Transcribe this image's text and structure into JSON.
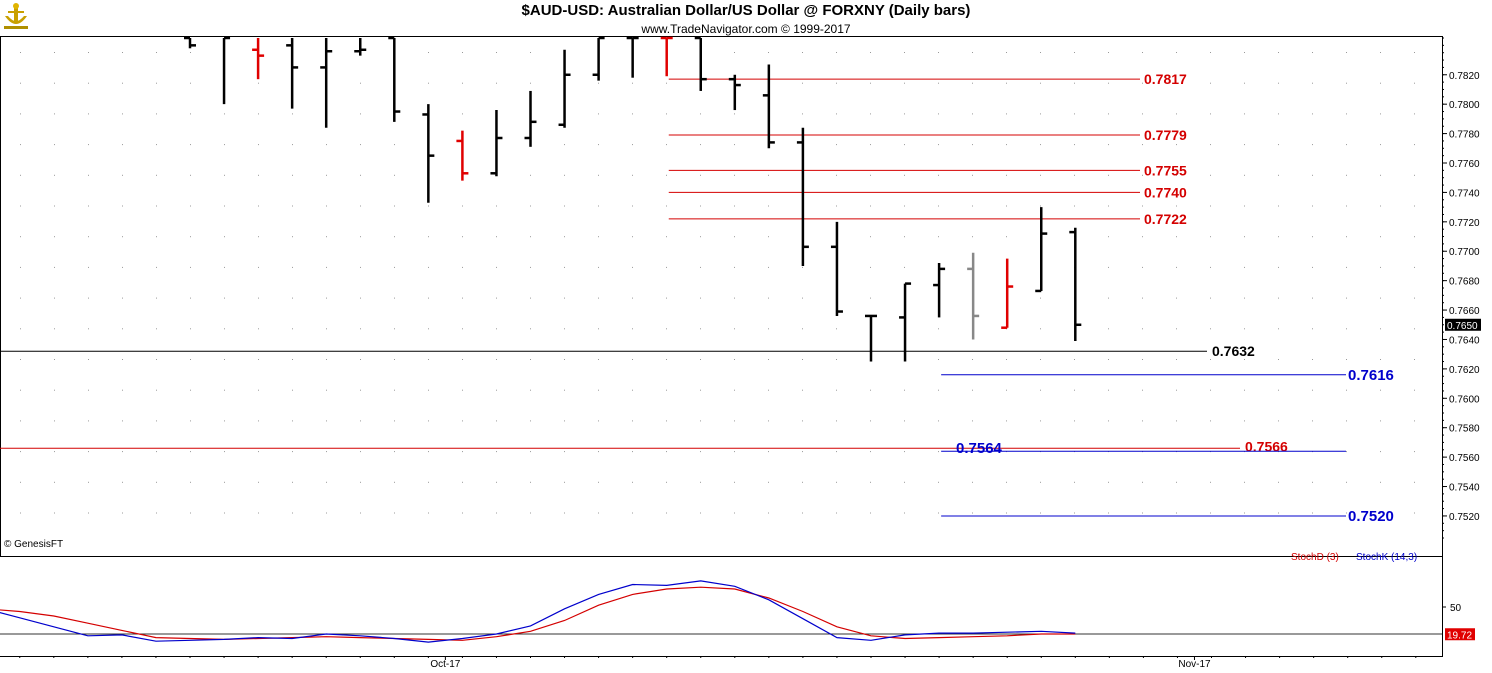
{
  "header": {
    "title": "$AUD-USD:  Australian Dollar/US Dollar @ FORXNY  (Daily bars)",
    "subtitle": "www.TradeNavigator.com © 1999-2017",
    "watermark": "© GenesisFT",
    "logo_icon": "genesis-logo-icon"
  },
  "colors": {
    "up_bar": "#000000",
    "down_bar": "#e00000",
    "neutral_bar": "#888888",
    "red_line": "#d40000",
    "blue_line": "#0000cc",
    "black_line": "#000000",
    "stoch_d": "#d40000",
    "stoch_k": "#0000cc"
  },
  "chart_data": [
    {
      "type": "ohlc",
      "y_axis": {
        "range": [
          0.7505,
          0.7845
        ],
        "ticks": [
          "0.7520",
          "0.7540",
          "0.7560",
          "0.7580",
          "0.7600",
          "0.7620",
          "0.7640",
          "0.7660",
          "0.7680",
          "0.7700",
          "0.7720",
          "0.7740",
          "0.7760",
          "0.7780",
          "0.7800",
          "0.7820"
        ],
        "last_value": "0.7650"
      },
      "x_axis": {
        "labels": [
          {
            "text": "Oct-17",
            "bar": 7.5
          },
          {
            "text": "Nov-17",
            "bar": 29.5
          }
        ]
      },
      "bars": [
        {
          "o": 0.7845,
          "h": 0.7845,
          "l": 0.7838,
          "c": 0.784,
          "color": "black"
        },
        {
          "o": 0.785,
          "h": 0.785,
          "l": 0.78,
          "c": 0.7845,
          "color": "black"
        },
        {
          "o": 0.7837,
          "h": 0.7845,
          "l": 0.7817,
          "c": 0.7833,
          "color": "red"
        },
        {
          "o": 0.784,
          "h": 0.7845,
          "l": 0.7797,
          "c": 0.7825,
          "color": "black"
        },
        {
          "o": 0.7825,
          "h": 0.7845,
          "l": 0.7784,
          "c": 0.7836,
          "color": "black"
        },
        {
          "o": 0.7836,
          "h": 0.7845,
          "l": 0.7833,
          "c": 0.7837,
          "color": "black"
        },
        {
          "o": 0.7845,
          "h": 0.7845,
          "l": 0.7788,
          "c": 0.7795,
          "color": "black"
        },
        {
          "o": 0.7793,
          "h": 0.78,
          "l": 0.7733,
          "c": 0.7765,
          "color": "black"
        },
        {
          "o": 0.7775,
          "h": 0.7782,
          "l": 0.7748,
          "c": 0.7753,
          "color": "red"
        },
        {
          "o": 0.7753,
          "h": 0.7796,
          "l": 0.7751,
          "c": 0.7777,
          "color": "black"
        },
        {
          "o": 0.7777,
          "h": 0.7809,
          "l": 0.7771,
          "c": 0.7788,
          "color": "black"
        },
        {
          "o": 0.7786,
          "h": 0.7837,
          "l": 0.7784,
          "c": 0.782,
          "color": "black"
        },
        {
          "o": 0.782,
          "h": 0.7845,
          "l": 0.7816,
          "c": 0.7845,
          "color": "black"
        },
        {
          "o": 0.7845,
          "h": 0.7845,
          "l": 0.7818,
          "c": 0.7845,
          "color": "black"
        },
        {
          "o": 0.7845,
          "h": 0.7845,
          "l": 0.7819,
          "c": 0.7845,
          "color": "red"
        },
        {
          "o": 0.7845,
          "h": 0.7845,
          "l": 0.7809,
          "c": 0.7817,
          "color": "black"
        },
        {
          "o": 0.7817,
          "h": 0.782,
          "l": 0.7796,
          "c": 0.7813,
          "color": "black"
        },
        {
          "o": 0.7806,
          "h": 0.7827,
          "l": 0.777,
          "c": 0.7774,
          "color": "black"
        },
        {
          "o": 0.7774,
          "h": 0.7784,
          "l": 0.769,
          "c": 0.7703,
          "color": "black"
        },
        {
          "o": 0.7703,
          "h": 0.772,
          "l": 0.7656,
          "c": 0.7659,
          "color": "black"
        },
        {
          "o": 0.7656,
          "h": 0.7656,
          "l": 0.7625,
          "c": 0.7656,
          "color": "black"
        },
        {
          "o": 0.7655,
          "h": 0.7678,
          "l": 0.7625,
          "c": 0.7678,
          "color": "black"
        },
        {
          "o": 0.7677,
          "h": 0.7692,
          "l": 0.7655,
          "c": 0.7688,
          "color": "black"
        },
        {
          "o": 0.7688,
          "h": 0.7699,
          "l": 0.764,
          "c": 0.7656,
          "color": "gray"
        },
        {
          "o": 0.7648,
          "h": 0.7695,
          "l": 0.7648,
          "c": 0.7676,
          "color": "red"
        },
        {
          "o": 0.7673,
          "h": 0.773,
          "l": 0.7673,
          "c": 0.7712,
          "color": "black"
        },
        {
          "o": 0.7713,
          "h": 0.7716,
          "l": 0.7639,
          "c": 0.765,
          "color": "black"
        }
      ],
      "levels": [
        {
          "value": 0.7817,
          "label": "0.7817",
          "color": "red",
          "start_bar": 15,
          "label_color": "red"
        },
        {
          "value": 0.7779,
          "label": "0.7779",
          "color": "red",
          "start_bar": 15,
          "label_color": "red"
        },
        {
          "value": 0.7755,
          "label": "0.7755",
          "color": "red",
          "start_bar": 15,
          "label_color": "red"
        },
        {
          "value": 0.774,
          "label": "0.7740",
          "color": "red",
          "start_bar": 15,
          "label_color": "red"
        },
        {
          "value": 0.7722,
          "label": "0.7722",
          "color": "red",
          "start_bar": 15,
          "label_color": "red"
        },
        {
          "value": 0.7632,
          "label": "0.7632",
          "color": "black",
          "start_bar": -6,
          "label_color": "black"
        },
        {
          "value": 0.7616,
          "label": "0.7616",
          "color": "blue",
          "start_bar": 23,
          "label_color": "blue"
        },
        {
          "value": 0.7566,
          "label": "0.7566",
          "color": "red",
          "start_bar": -6,
          "label_color": "red"
        },
        {
          "value": 0.7564,
          "label": "0.7564",
          "color": "blue",
          "start_bar": 23,
          "label_color": "blue"
        },
        {
          "value": 0.752,
          "label": "0.7520",
          "color": "blue",
          "start_bar": 23,
          "label_color": "blue"
        }
      ]
    },
    {
      "type": "line",
      "legend": [
        "StochD (3)",
        "StochK (14,3)"
      ],
      "y_axis": {
        "range": [
          0,
          100
        ],
        "ticks": [
          "50"
        ],
        "last_value": "19.72"
      },
      "reference_line": 20,
      "x": [
        -6,
        -5,
        -4,
        -3,
        -2,
        -1,
        0,
        1,
        2,
        3,
        4,
        5,
        6,
        7,
        8,
        9,
        10,
        11,
        12,
        13,
        14,
        15,
        16,
        17,
        18,
        19,
        20,
        21,
        22,
        23,
        24,
        25,
        26
      ],
      "series": [
        {
          "name": "StochD (3)",
          "color": "red",
          "values": [
            48,
            45,
            40,
            32,
            24,
            16,
            15,
            14,
            15,
            16,
            17,
            16,
            15,
            14,
            13,
            17,
            23,
            35,
            52,
            64,
            70,
            72,
            70,
            60,
            45,
            28,
            18,
            15,
            16,
            17,
            18,
            20,
            20
          ]
        },
        {
          "name": "StochK (14,3)",
          "color": "blue",
          "values": [
            48,
            38,
            28,
            18,
            19,
            12,
            13,
            14,
            16,
            15,
            20,
            18,
            15,
            11,
            15,
            20,
            29,
            48,
            64,
            75,
            74,
            79,
            73,
            58,
            37,
            16,
            13,
            19,
            21,
            21,
            22,
            23,
            21
          ]
        }
      ]
    }
  ]
}
